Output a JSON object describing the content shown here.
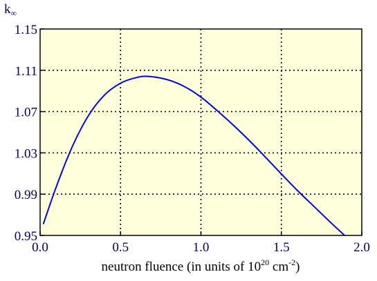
{
  "chart_data": {
    "type": "line",
    "title": "",
    "ylabel_main": "k",
    "ylabel_sub": "∞",
    "xlabel_main": "neutron fluence (in units of 10",
    "xlabel_exp1": "20",
    "xlabel_mid": " cm",
    "xlabel_exp2": "-2",
    "xlabel_end": ")",
    "xlim": [
      0.0,
      2.0
    ],
    "ylim": [
      0.95,
      1.15
    ],
    "xticks": [
      0.0,
      0.5,
      1.0,
      1.5,
      2.0
    ],
    "xtick_labels": [
      "0.0",
      "0.5",
      "1.0",
      "1.5",
      "2.0"
    ],
    "yticks": [
      0.95,
      0.99,
      1.03,
      1.07,
      1.11,
      1.15
    ],
    "ytick_labels": [
      "0.95",
      "0.99",
      "1.03",
      "1.07",
      "1.11",
      "1.15"
    ],
    "grid": true,
    "plot_background": "#ffffdc",
    "line_color": "#0000e6",
    "series": [
      {
        "x": [
          0.02,
          0.1,
          0.2,
          0.3,
          0.4,
          0.5,
          0.6,
          0.68,
          0.8,
          0.9,
          1.0,
          1.1,
          1.2,
          1.3,
          1.4,
          1.5,
          1.6,
          1.7,
          1.8,
          1.9,
          2.0
        ],
        "y": [
          0.961,
          0.997,
          1.036,
          1.066,
          1.086,
          1.0975,
          1.103,
          1.104,
          1.1005,
          1.094,
          1.084,
          1.071,
          1.057,
          1.042,
          1.026,
          1.0095,
          0.9935,
          0.9785,
          0.9635,
          0.949,
          0.9345
        ]
      }
    ]
  }
}
